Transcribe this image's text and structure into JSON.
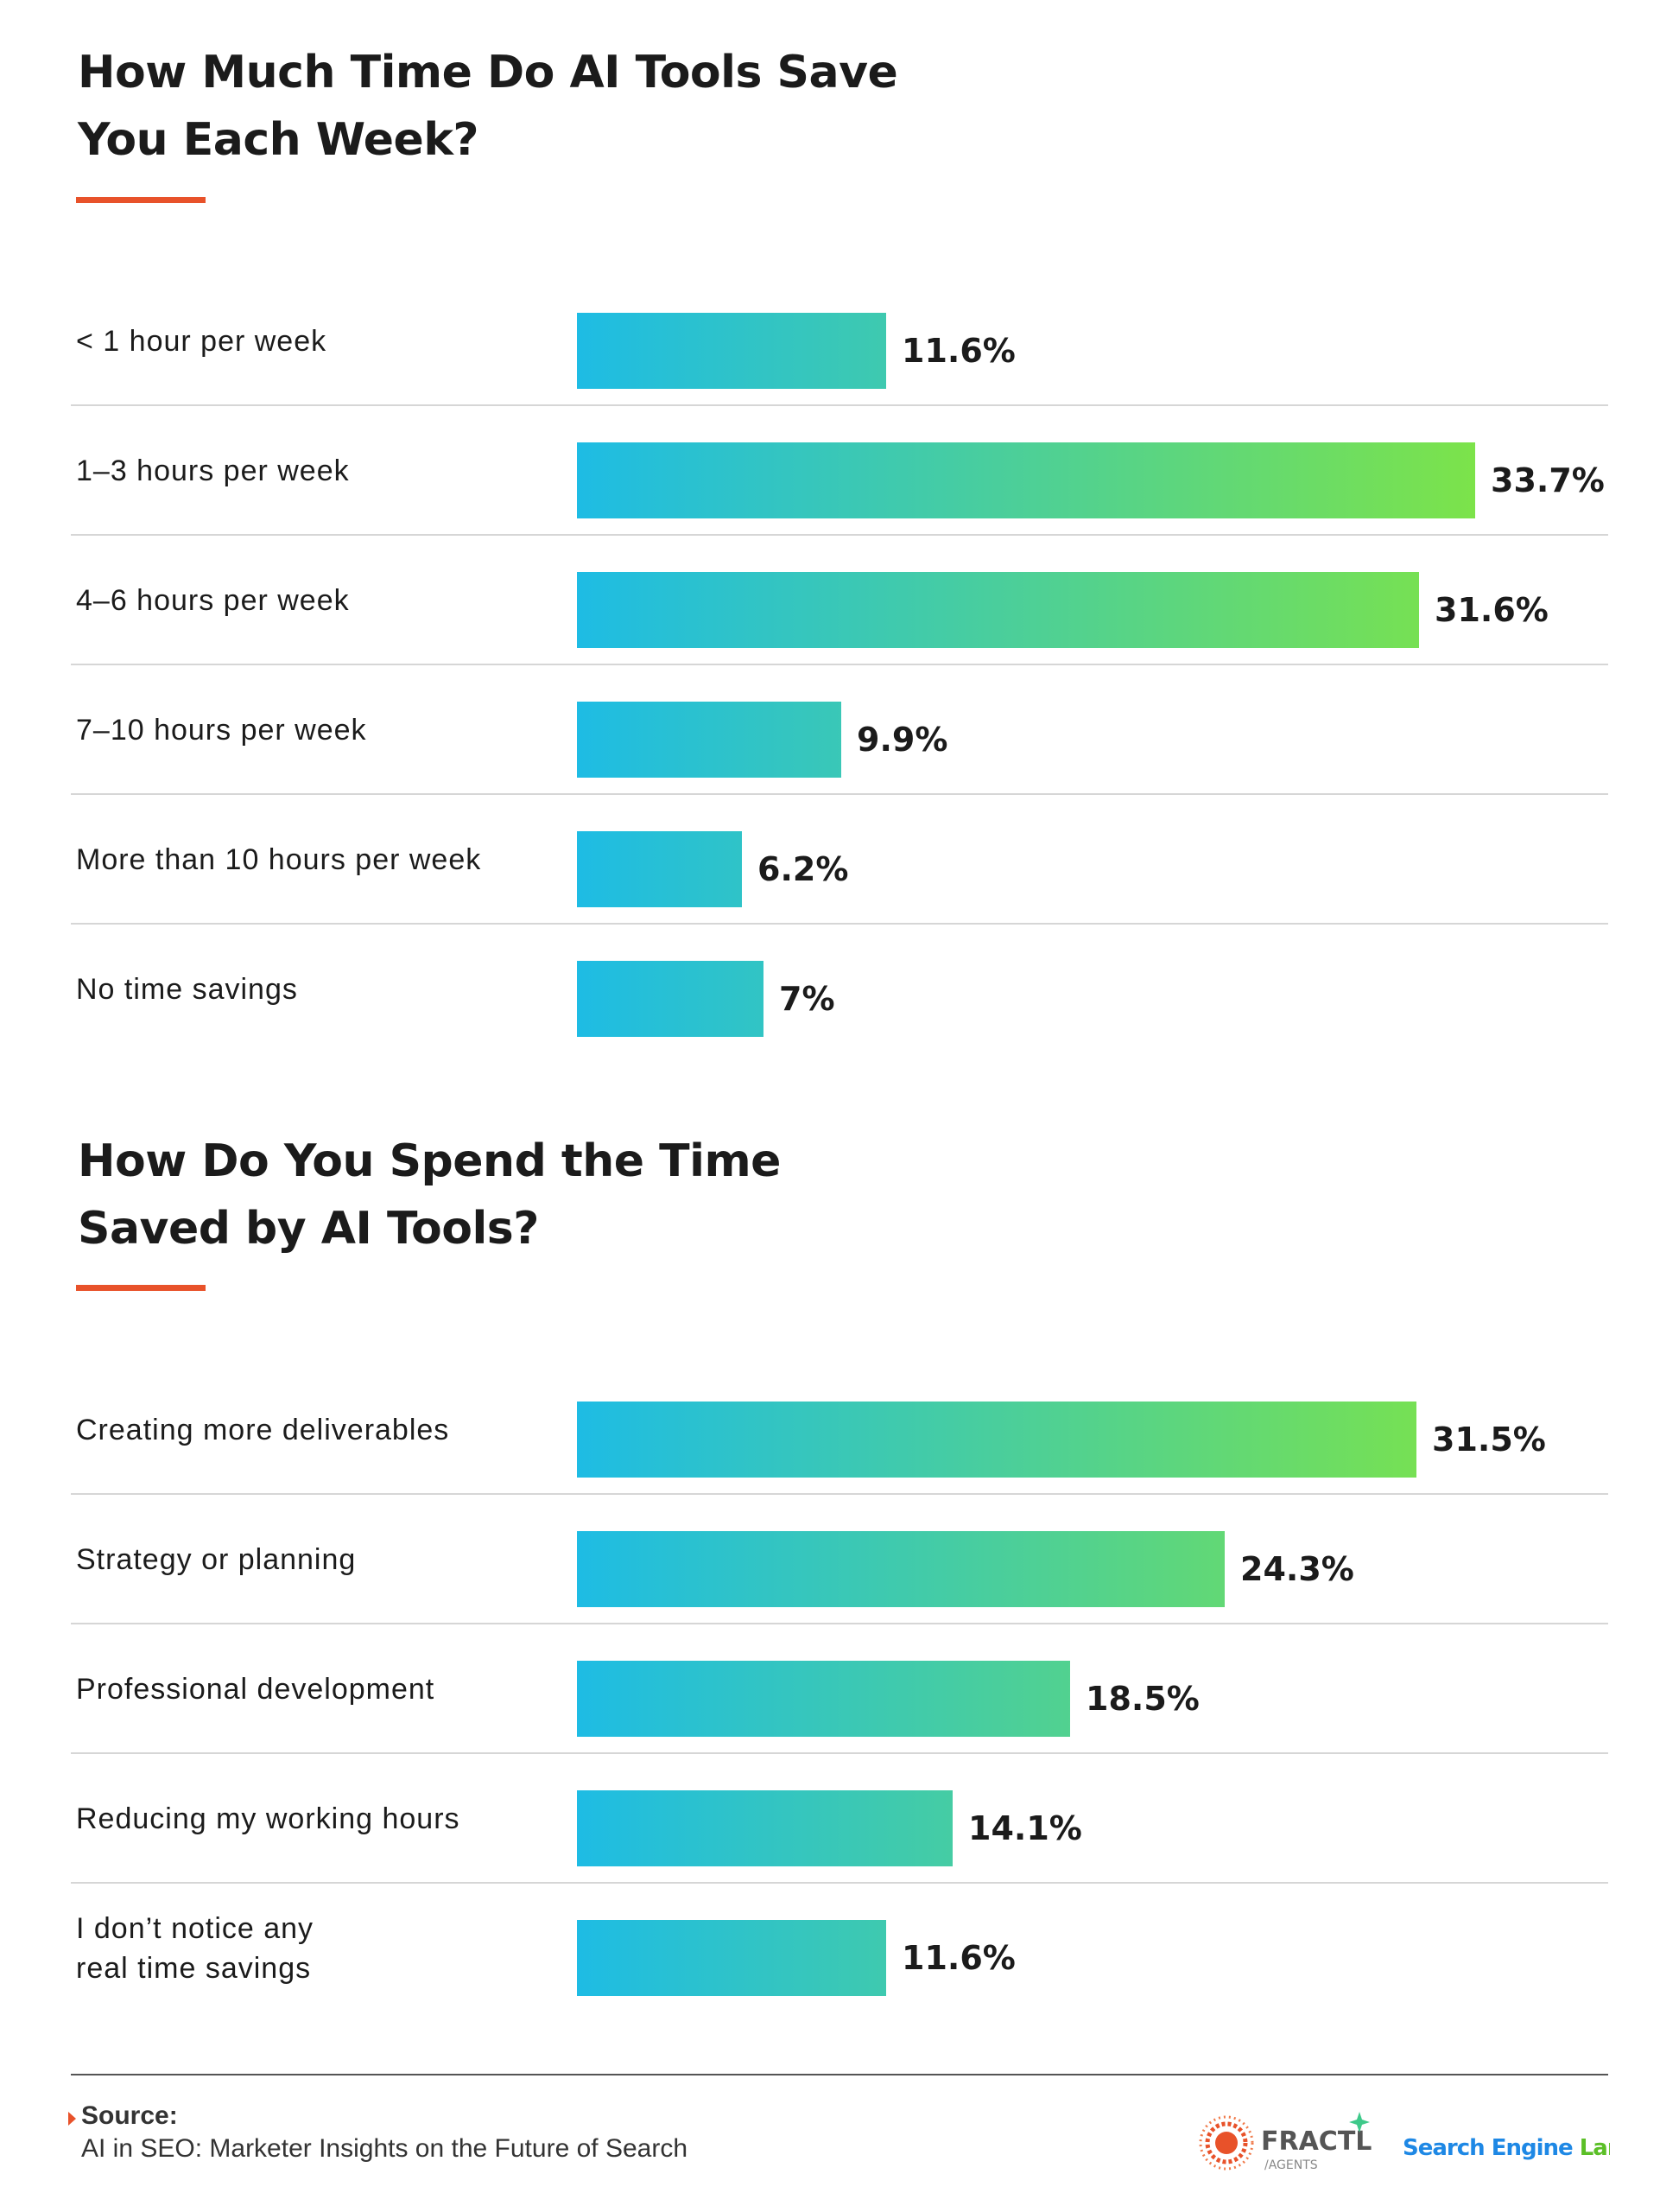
{
  "colors": {
    "text": "#1b1b1b",
    "accent_rule": "#e8522a",
    "bar_gradient_start": "#1ebce4",
    "bar_gradient_end": "#7ce34a",
    "divider": "#d6d6d6"
  },
  "chart_data": [
    {
      "type": "bar",
      "orientation": "horizontal",
      "title": "How Much Time Do AI Tools Save You Each Week?",
      "title_lines": [
        "How Much Time Do AI Tools Save",
        "You Each Week?"
      ],
      "categories": [
        "< 1 hour per week",
        "1–3 hours per week",
        "4–6 hours per week",
        "7–10 hours per week",
        "More than 10 hours per week",
        "No time savings"
      ],
      "values": [
        11.6,
        33.7,
        31.6,
        9.9,
        6.2,
        7
      ],
      "value_labels": [
        "11.6%",
        "33.7%",
        "31.6%",
        "9.9%",
        "6.2%",
        "7%"
      ],
      "unit": "%",
      "xlim": [
        0,
        33.7
      ],
      "grid": false,
      "legend": "none"
    },
    {
      "type": "bar",
      "orientation": "horizontal",
      "title": "How Do You Spend the Time Saved by AI Tools?",
      "title_lines": [
        "How Do You Spend the Time",
        "Saved by AI Tools?"
      ],
      "categories": [
        "Creating more deliverables",
        "Strategy or planning",
        "Professional development",
        "Reducing my working hours",
        "I don’t notice any\nreal time savings"
      ],
      "values": [
        31.5,
        24.3,
        18.5,
        14.1,
        11.6
      ],
      "value_labels": [
        "31.5%",
        "24.3%",
        "18.5%",
        "14.1%",
        "11.6%"
      ],
      "unit": "%",
      "xlim": [
        0,
        33.7
      ],
      "grid": false,
      "legend": "none"
    }
  ],
  "footer": {
    "source_label": "Source:",
    "source_text": "AI in SEO: Marketer Insights on the Future of Search",
    "logo_fractl_name": "FRACTL",
    "logo_fractl_sub": "/AGENTS",
    "logo_sel_part1": "Search Engine ",
    "logo_sel_part2": "Land"
  }
}
